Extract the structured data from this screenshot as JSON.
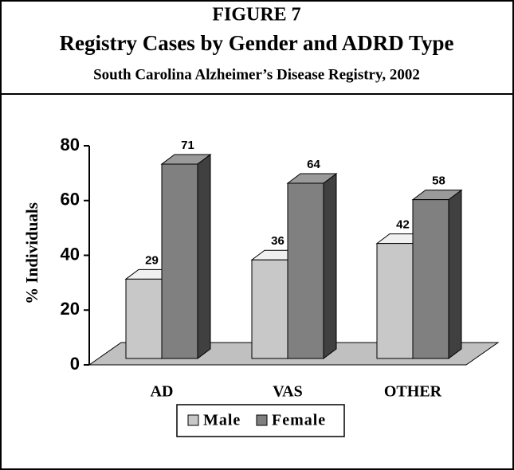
{
  "chart_data": {
    "type": "bar3d",
    "label": "FIGURE 7",
    "title": "Registry Cases by Gender and ADRD Type",
    "subtitle": "South Carolina Alzheimer’s Disease Registry, 2002",
    "y_label": "% Individuals",
    "categories": [
      "AD",
      "VAS",
      "OTHER"
    ],
    "series": [
      {
        "name": "Male",
        "color": "#c8c8c8",
        "values": [
          29,
          36,
          42
        ]
      },
      {
        "name": "Female",
        "color": "#808080",
        "values": [
          71,
          64,
          58
        ]
      }
    ],
    "ylim": [
      0,
      80
    ],
    "yticks": [
      0,
      20,
      40,
      60,
      80
    ],
    "legend": "bottom"
  }
}
